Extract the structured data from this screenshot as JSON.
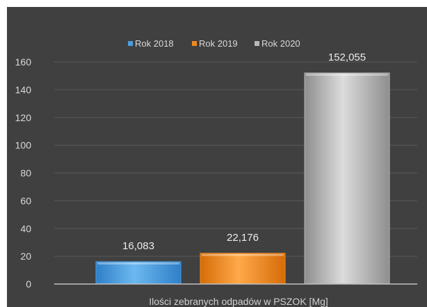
{
  "chart_data": {
    "type": "bar",
    "categories": [
      "Ilości zebranych odpadów w PSZOK [Mg]"
    ],
    "series": [
      {
        "name": "Rok 2018",
        "values": [
          16.083
        ],
        "label": "16,083",
        "color": "#4a9fe0"
      },
      {
        "name": "Rok 2019",
        "values": [
          22.176
        ],
        "label": "22,176",
        "color": "#f28a1e"
      },
      {
        "name": "Rok 2020",
        "values": [
          152.055
        ],
        "label": "152,055",
        "color": "#b8b8b8"
      }
    ],
    "title": "",
    "xlabel": "Ilości zebranych odpadów w PSZOK [Mg]",
    "ylabel": "",
    "ylim": [
      0,
      160
    ],
    "yticks": [
      "0",
      "20",
      "40",
      "60",
      "80",
      "100",
      "120",
      "140",
      "160"
    ],
    "grid": true,
    "legend_position": "top",
    "background": "#404040",
    "grid_color": "#5a5a5a",
    "axis_color": "#bfbfbf"
  }
}
